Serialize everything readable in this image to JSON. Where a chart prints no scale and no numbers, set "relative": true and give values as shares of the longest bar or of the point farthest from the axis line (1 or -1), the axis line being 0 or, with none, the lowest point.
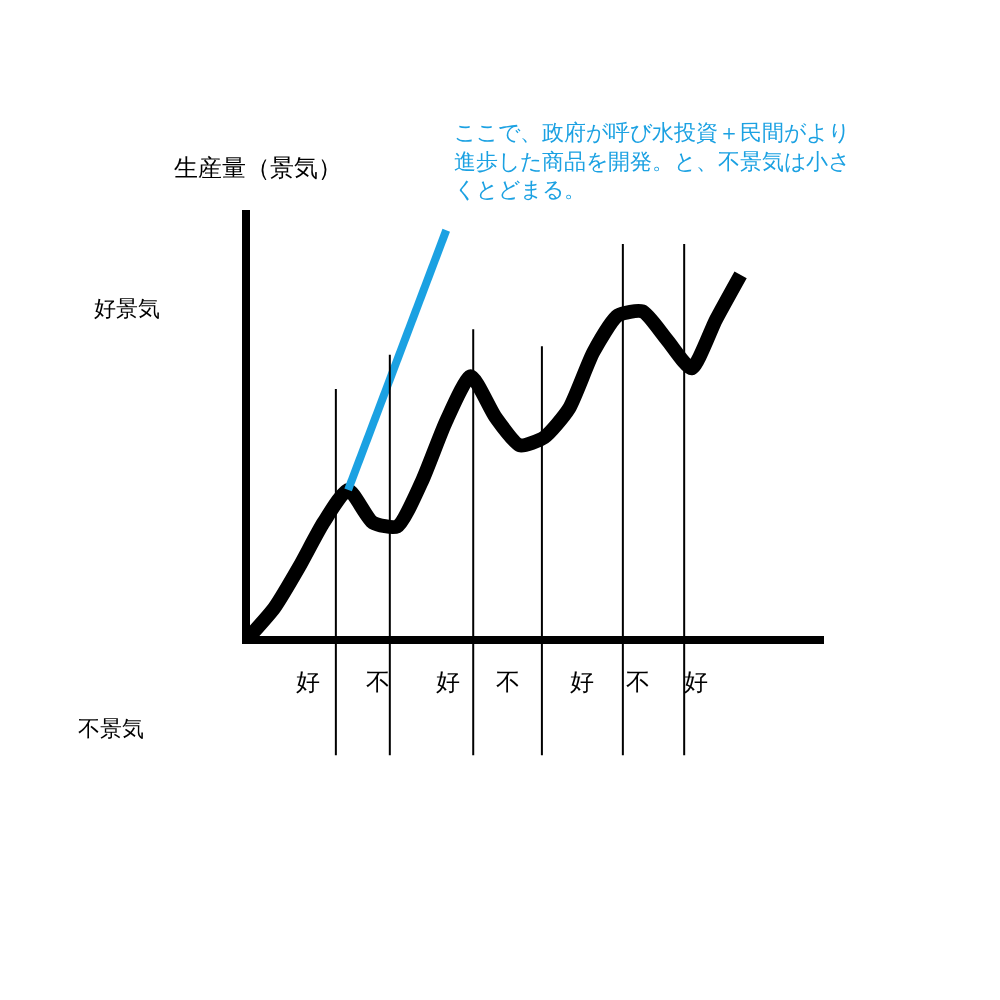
{
  "chart_data": {
    "type": "line",
    "relative": true,
    "ylabel": "生産量（景気）",
    "categories": [
      null,
      null,
      null,
      null,
      null,
      null,
      null,
      null,
      null,
      null,
      null,
      null,
      null,
      null,
      null,
      null,
      null,
      null,
      null,
      null,
      null
    ],
    "series": [
      {
        "color": "#000000",
        "values": [
          0,
          0.07,
          0.17,
          0.28,
          0.36,
          0.28,
          0.27,
          0.38,
          0.53,
          0.64,
          0.54,
          0.47,
          0.49,
          0.56,
          0.7,
          0.79,
          0.8,
          0.73,
          0.66,
          0.78,
          0.89
        ]
      },
      {
        "color": "#1ba1e2",
        "values": [
          null,
          null,
          null,
          null,
          0.36,
          null,
          null,
          null,
          1.0,
          null,
          null,
          null,
          null,
          null,
          null,
          null,
          null,
          null,
          null,
          null,
          null
        ]
      }
    ],
    "annotations": [
      "好",
      "不",
      "好",
      "不",
      "好",
      "不",
      "好",
      "好景気",
      "不景気",
      "ここで、政府が呼び水投資＋民間がより進歩した商品を開発。と、不景気は小さくとどまる。"
    ]
  }
}
